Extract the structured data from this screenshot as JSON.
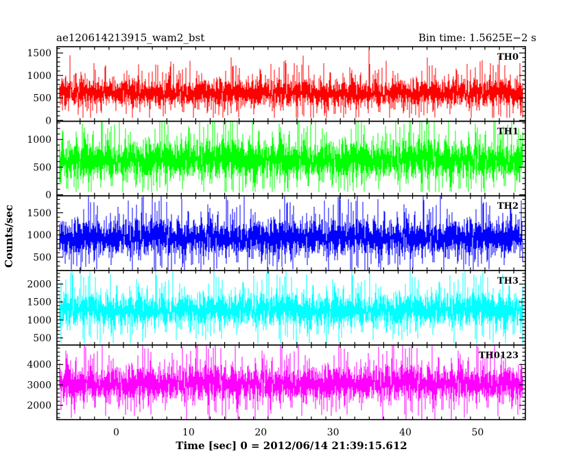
{
  "header": {
    "left_title": "ae120614213915_wam2_bst",
    "right_title": "Bin time: 1.5625E−2 s"
  },
  "chart_data": {
    "type": "line",
    "title": "ae120614213915_wam2_bst",
    "subtitle": "Bin time: 1.5625E−2 s",
    "xlabel": "Time [sec] 0 = 2012/06/14 21:39:15.612",
    "ylabel": "Counts/sec",
    "xlim": [
      -8.2,
      56.6
    ],
    "x_ticks": [
      0,
      10,
      20,
      30,
      40,
      50
    ],
    "x_range": [
      -7.8,
      56.2
    ],
    "bin_time_s": 0.015625,
    "grid": false,
    "panels": [
      {
        "name": "TH0",
        "color": "#ff0000",
        "ylim": [
          -20,
          1640
        ],
        "y_ticks": [
          0,
          500,
          1000,
          1500
        ],
        "base": 620,
        "spread": 230,
        "min_clip": 60,
        "max_clip": 1640
      },
      {
        "name": "TH1",
        "color": "#00ff00",
        "ylim": [
          -20,
          1330
        ],
        "y_ticks": [
          0,
          500,
          1000
        ],
        "base": 650,
        "spread": 260,
        "min_clip": 50,
        "max_clip": 1330
      },
      {
        "name": "TH2",
        "color": "#0000ff",
        "ylim": [
          200,
          1880
        ],
        "y_ticks": [
          500,
          1000,
          1500
        ],
        "base": 950,
        "spread": 300,
        "min_clip": 200,
        "max_clip": 1880
      },
      {
        "name": "TH3",
        "color": "#00ffff",
        "ylim": [
          300,
          2380
        ],
        "y_ticks": [
          500,
          1000,
          1500,
          2000
        ],
        "base": 1300,
        "spread": 340,
        "min_clip": 350,
        "max_clip": 2380
      },
      {
        "name": "TH0123",
        "color": "#ff00ff",
        "ylim": [
          1300,
          4950
        ],
        "y_ticks": [
          2000,
          3000,
          4000
        ],
        "base": 3100,
        "spread": 640,
        "min_clip": 1300,
        "max_clip": 4950
      }
    ]
  }
}
